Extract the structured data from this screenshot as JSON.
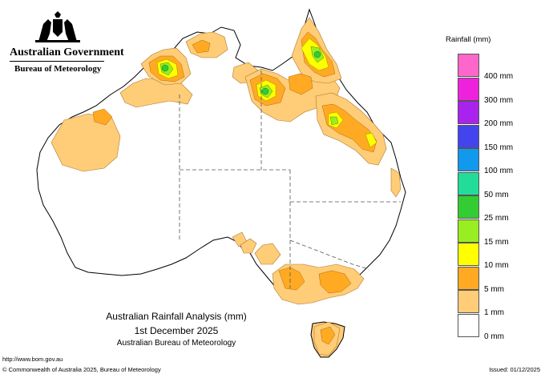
{
  "header": {
    "organisation": "Australian Government",
    "agency": "Bureau of Meteorology"
  },
  "title": {
    "line1": "Australian Rainfall Analysis (mm)",
    "line2": "1st December 2025",
    "line3": "Australian Bureau of Meteorology"
  },
  "legend": {
    "title": "Rainfall (mm)",
    "items": [
      {
        "label": "400 mm",
        "color": "#ff66cc"
      },
      {
        "label": "300 mm",
        "color": "#ee22dd"
      },
      {
        "label": "200 mm",
        "color": "#aa22ee"
      },
      {
        "label": "150 mm",
        "color": "#4444ee"
      },
      {
        "label": "100 mm",
        "color": "#1199ee"
      },
      {
        "label": "50 mm",
        "color": "#22dd99"
      },
      {
        "label": "25 mm",
        "color": "#33cc33"
      },
      {
        "label": "15 mm",
        "color": "#99ee22"
      },
      {
        "label": "10 mm",
        "color": "#ffff00"
      },
      {
        "label": "5 mm",
        "color": "#ffaa22"
      },
      {
        "label": "1 mm",
        "color": "#ffcc77"
      },
      {
        "label": "0 mm",
        "color": "#ffffff"
      }
    ]
  },
  "footer": {
    "url": "http://www.bom.gov.au",
    "copyright": "© Commonwealth of Australia 2025, Bureau of Meteorology",
    "issued": "Issued: 01/12/2025"
  }
}
